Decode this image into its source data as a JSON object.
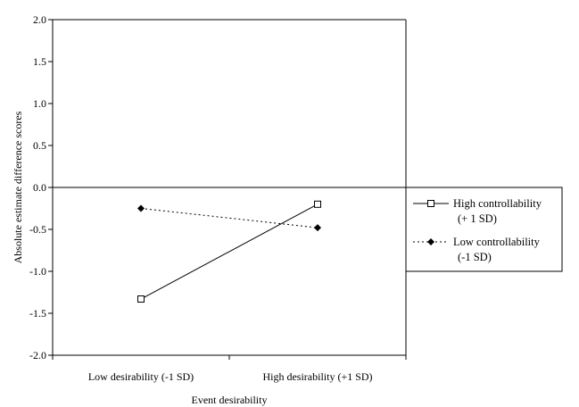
{
  "chart_data": {
    "type": "line",
    "title": "",
    "xlabel": "Event desirability",
    "ylabel": "Absolute estimate difference scores",
    "categories": [
      "Low desirability (-1 SD)",
      "High desirability (+1 SD)"
    ],
    "ylim": [
      -2.0,
      2.0
    ],
    "yticks": [
      "2.0",
      "1.5",
      "1.0",
      "0.5",
      "0.0",
      "-0.5",
      "-1.0",
      "-1.5",
      "-2.0"
    ],
    "ytick_values": [
      2.0,
      1.5,
      1.0,
      0.5,
      0.0,
      -0.5,
      -1.0,
      -1.5,
      -2.0
    ],
    "grid": false,
    "legend_position": "right",
    "series": [
      {
        "name_lines": [
          "High controllability",
          "(+ 1 SD)"
        ],
        "values": [
          -1.33,
          -0.2
        ],
        "line_style": "solid",
        "marker": "open-square",
        "color": "#000000"
      },
      {
        "name_lines": [
          "Low controllability",
          "(-1 SD)"
        ],
        "values": [
          -0.25,
          -0.48
        ],
        "line_style": "dotted",
        "marker": "filled-diamond",
        "color": "#000000"
      }
    ]
  }
}
